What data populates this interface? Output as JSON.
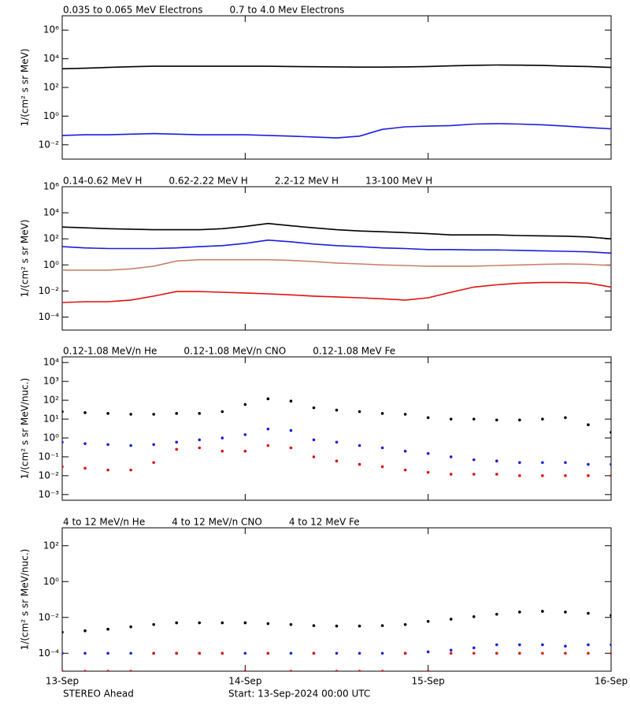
{
  "chart_data": [
    {
      "type": "line",
      "log": true,
      "ylabel": "1/(cm² s sr MeV)",
      "xlim": [
        0,
        3
      ],
      "ylim": [
        0.001,
        10000000
      ],
      "yticks": [
        {
          "value": 0.01,
          "label": "10⁻²"
        },
        {
          "value": 1,
          "label": "10⁰"
        },
        {
          "value": 100,
          "label": "10²"
        },
        {
          "value": 10000,
          "label": "10⁴"
        },
        {
          "value": 1000000,
          "label": "10⁶"
        }
      ],
      "x": [
        0,
        0.125,
        0.25,
        0.375,
        0.5,
        0.625,
        0.75,
        0.875,
        1,
        1.125,
        1.25,
        1.375,
        1.5,
        1.625,
        1.75,
        1.875,
        2,
        2.125,
        2.25,
        2.375,
        2.5,
        2.625,
        2.75,
        2.875,
        3
      ],
      "series": [
        {
          "name": "0.035 to 0.065 MeV Electrons",
          "color": "#000000",
          "values": [
            2000,
            2200,
            2500,
            2800,
            3000,
            3000,
            3000,
            3000,
            3000,
            3000,
            2900,
            2800,
            2700,
            2600,
            2600,
            2700,
            2900,
            3200,
            3500,
            3700,
            3600,
            3400,
            3100,
            2900,
            2500
          ]
        },
        {
          "name": "0.7 to 4.0 Mev Electrons",
          "color": "#1c1ce0",
          "values": [
            0.045,
            0.05,
            0.05,
            0.055,
            0.06,
            0.055,
            0.05,
            0.05,
            0.05,
            0.045,
            0.04,
            0.035,
            0.03,
            0.04,
            0.12,
            0.18,
            0.2,
            0.22,
            0.28,
            0.3,
            0.28,
            0.25,
            0.2,
            0.16,
            0.13
          ]
        }
      ]
    },
    {
      "type": "line",
      "log": true,
      "ylabel": "1/(cm² s sr MeV)",
      "xlim": [
        0,
        3
      ],
      "ylim": [
        1e-05,
        1000000
      ],
      "yticks": [
        {
          "value": 0.0001,
          "label": "10⁻⁴"
        },
        {
          "value": 0.01,
          "label": "10⁻²"
        },
        {
          "value": 1,
          "label": "10⁰"
        },
        {
          "value": 100,
          "label": "10²"
        },
        {
          "value": 10000,
          "label": "10⁴"
        },
        {
          "value": 1000000,
          "label": "10⁶"
        }
      ],
      "x": [
        0,
        0.125,
        0.25,
        0.375,
        0.5,
        0.625,
        0.75,
        0.875,
        1,
        1.125,
        1.25,
        1.375,
        1.5,
        1.625,
        1.75,
        1.875,
        2,
        2.125,
        2.25,
        2.375,
        2.5,
        2.625,
        2.75,
        2.875,
        3
      ],
      "series": [
        {
          "name": "0.14-0.62 MeV H",
          "color": "#000000",
          "values": [
            800,
            700,
            600,
            550,
            500,
            500,
            500,
            600,
            900,
            1500,
            1000,
            700,
            500,
            400,
            350,
            300,
            250,
            200,
            200,
            200,
            180,
            170,
            160,
            140,
            100
          ]
        },
        {
          "name": "0.62-2.22 MeV H",
          "color": "#1c1ce0",
          "values": [
            25,
            20,
            18,
            18,
            18,
            20,
            25,
            30,
            45,
            80,
            60,
            40,
            30,
            25,
            20,
            18,
            15,
            15,
            14,
            14,
            13,
            12,
            11,
            10,
            8
          ]
        },
        {
          "name": "2.2-12 MeV H",
          "color": "#c8826a",
          "values": [
            0.4,
            0.4,
            0.4,
            0.5,
            0.8,
            2.0,
            2.5,
            2.5,
            2.5,
            2.5,
            2.2,
            1.8,
            1.4,
            1.2,
            1.0,
            0.9,
            0.8,
            0.8,
            0.8,
            0.9,
            1.0,
            1.1,
            1.2,
            1.1,
            0.9
          ]
        },
        {
          "name": "13-100 MeV H",
          "color": "#e01010",
          "values": [
            0.0013,
            0.0015,
            0.0015,
            0.002,
            0.004,
            0.009,
            0.009,
            0.008,
            0.007,
            0.006,
            0.005,
            0.004,
            0.0035,
            0.003,
            0.0025,
            0.002,
            0.003,
            0.008,
            0.02,
            0.03,
            0.04,
            0.045,
            0.045,
            0.04,
            0.02
          ]
        }
      ]
    },
    {
      "type": "scatter",
      "log": true,
      "ylabel": "1/(cm² s sr MeV/nuc.)",
      "xlim": [
        0,
        3
      ],
      "ylim": [
        0.0005,
        20000
      ],
      "yticks": [
        {
          "value": 0.001,
          "label": "10⁻³"
        },
        {
          "value": 0.01,
          "label": "10⁻²"
        },
        {
          "value": 0.1,
          "label": "10⁻¹"
        },
        {
          "value": 1,
          "label": "10⁰"
        },
        {
          "value": 10,
          "label": "10¹"
        },
        {
          "value": 100,
          "label": "10²"
        },
        {
          "value": 1000,
          "label": "10³"
        },
        {
          "value": 10000,
          "label": "10⁴"
        }
      ],
      "x": [
        0,
        0.125,
        0.25,
        0.375,
        0.5,
        0.625,
        0.75,
        0.875,
        1,
        1.125,
        1.25,
        1.375,
        1.5,
        1.625,
        1.75,
        1.875,
        2,
        2.125,
        2.25,
        2.375,
        2.5,
        2.625,
        2.75,
        2.875,
        3
      ],
      "series": [
        {
          "name": "0.12-1.08 MeV/n He",
          "color": "#000000",
          "values": [
            25,
            22,
            20,
            18,
            18,
            20,
            20,
            25,
            60,
            120,
            90,
            40,
            30,
            25,
            20,
            18,
            12,
            10,
            10,
            9,
            9,
            10,
            12,
            5,
            2
          ]
        },
        {
          "name": "0.12-1.08 MeV/n CNO",
          "color": "#1c1ce0",
          "values": [
            0.6,
            0.5,
            0.45,
            0.4,
            0.45,
            0.6,
            0.8,
            1.0,
            1.5,
            3,
            2.5,
            0.8,
            0.6,
            0.4,
            0.3,
            0.2,
            0.15,
            0.1,
            0.07,
            0.06,
            0.05,
            0.05,
            0.05,
            0.04,
            0.04
          ]
        },
        {
          "name": "0.12-1.08 MeV Fe",
          "color": "#e01010",
          "values": [
            0.03,
            0.025,
            0.02,
            0.02,
            0.05,
            0.25,
            0.3,
            0.2,
            0.2,
            0.4,
            0.3,
            0.1,
            0.06,
            0.04,
            0.03,
            0.02,
            0.015,
            0.012,
            0.012,
            0.012,
            0.01,
            0.01,
            0.01,
            0.01,
            0.01
          ]
        }
      ]
    },
    {
      "type": "scatter",
      "log": true,
      "ylabel": "1/(cm² s sr MeV/nuc.)",
      "xlim": [
        0,
        3
      ],
      "ylim": [
        1e-05,
        1000
      ],
      "xticks": [
        {
          "value": 0,
          "label": "13-Sep"
        },
        {
          "value": 1,
          "label": "14-Sep"
        },
        {
          "value": 2,
          "label": "15-Sep"
        },
        {
          "value": 3,
          "label": "16-Sep"
        }
      ],
      "yticks": [
        {
          "value": 0.0001,
          "label": "10⁻⁴"
        },
        {
          "value": 0.01,
          "label": "10⁻²"
        },
        {
          "value": 1,
          "label": "10⁰"
        },
        {
          "value": 100,
          "label": "10²"
        }
      ],
      "x": [
        0,
        0.125,
        0.25,
        0.375,
        0.5,
        0.625,
        0.75,
        0.875,
        1,
        1.125,
        1.25,
        1.375,
        1.5,
        1.625,
        1.75,
        1.875,
        2,
        2.125,
        2.25,
        2.375,
        2.5,
        2.625,
        2.75,
        2.875,
        3
      ],
      "series": [
        {
          "name": "4 to 12 MeV/n He",
          "color": "#000000",
          "values": [
            0.0015,
            0.0018,
            0.0022,
            0.003,
            0.004,
            0.005,
            0.005,
            0.005,
            0.005,
            0.0045,
            0.004,
            0.0035,
            0.0033,
            0.0033,
            0.0035,
            0.004,
            0.006,
            0.008,
            0.011,
            0.015,
            0.02,
            0.022,
            0.02,
            0.017,
            0.013
          ]
        },
        {
          "name": "4 to 12 MeV/n CNO",
          "color": "#1c1ce0",
          "values": [
            0.0001,
            0.0001,
            0.0001,
            0.0001,
            0.0001,
            0.0001,
            0.0001,
            0.0001,
            0.0001,
            0.0001,
            0.0001,
            0.0001,
            0.0001,
            0.0001,
            0.0001,
            0.0001,
            0.00012,
            0.00015,
            0.0002,
            0.0003,
            0.0003,
            0.0003,
            0.00025,
            0.0003,
            0.0003
          ]
        },
        {
          "name": "4 to 12 MeV Fe",
          "color": "#e01010",
          "values": [
            1e-05,
            1e-05,
            1e-05,
            1e-05,
            0.0001,
            0.0001,
            0.0001,
            0.0001,
            1e-05,
            0.0001,
            1e-05,
            0.0001,
            1e-05,
            1e-05,
            1e-05,
            0.0001,
            1e-05,
            0.0001,
            0.0001,
            0.0001,
            0.0001,
            0.0001,
            0.0001,
            0.0001,
            0.0001
          ]
        }
      ]
    }
  ],
  "footer": {
    "spacecraft": "STEREO Ahead",
    "start": "Start: 13-Sep-2024 00:00 UTC"
  }
}
